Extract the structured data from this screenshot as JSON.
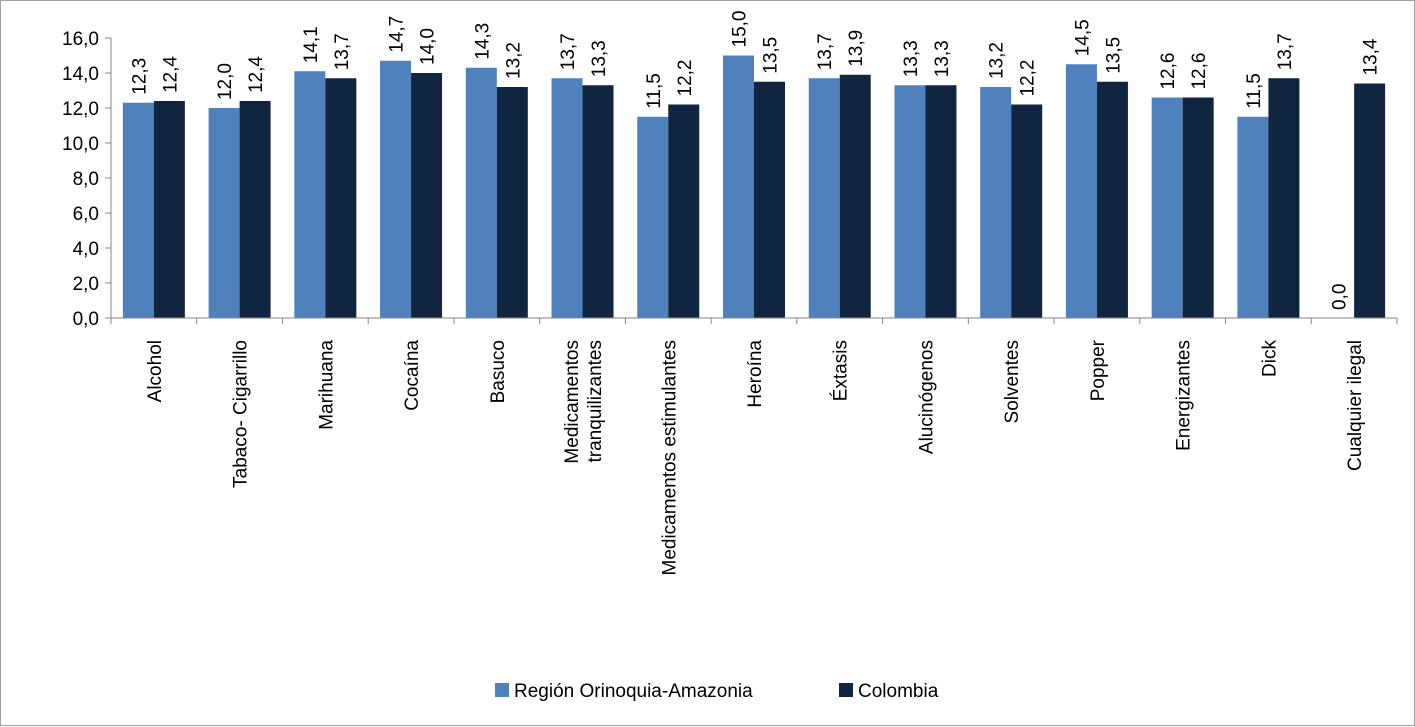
{
  "chart_data": {
    "type": "bar",
    "categories": [
      "Alcohol",
      "Tabaco- Cigarrillo",
      "Marihuana",
      "Cocaína",
      "Basuco",
      [
        "Medicamentos",
        "tranquilizantes"
      ],
      "Medicamentos estimulantes",
      "Heroína",
      "Éxtasis",
      "Alucinógenos",
      "Solventes",
      "Popper",
      "Energizantes",
      "Dick",
      "Cualquier ilegal"
    ],
    "series": [
      {
        "name": "Región Orinoquia-Amazonia",
        "color": "#4f81bd",
        "values": [
          12.3,
          12.0,
          14.1,
          14.7,
          14.3,
          13.7,
          11.5,
          15.0,
          13.7,
          13.3,
          13.2,
          14.5,
          12.6,
          11.5,
          0.0
        ],
        "labels": [
          "12,3",
          "12,0",
          "14,1",
          "14,7",
          "14,3",
          "13,7",
          "11,5",
          "15,0",
          "13,7",
          "13,3",
          "13,2",
          "14,5",
          "12,6",
          "11,5",
          "0,0"
        ]
      },
      {
        "name": "Colombia",
        "color": "#10253f",
        "values": [
          12.4,
          12.4,
          13.7,
          14.0,
          13.2,
          13.3,
          12.2,
          13.5,
          13.9,
          13.3,
          12.2,
          13.5,
          12.6,
          13.7,
          13.4
        ],
        "labels": [
          "12,4",
          "12,4",
          "13,7",
          "14,0",
          "13,2",
          "13,3",
          "12,2",
          "13,5",
          "13,9",
          "13,3",
          "12,2",
          "13,5",
          "12,6",
          "13,7",
          "13,4"
        ]
      }
    ],
    "ylim": [
      0,
      16
    ],
    "yticks": [
      "0,0",
      "2,0",
      "4,0",
      "6,0",
      "8,0",
      "10,0",
      "12,0",
      "14,0",
      "16,0"
    ],
    "title": "",
    "xlabel": "",
    "ylabel": "",
    "legend_position": "bottom",
    "grid": false
  }
}
